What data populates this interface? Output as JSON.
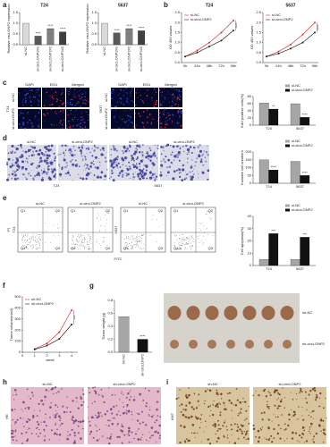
{
  "chart_data": [
    {
      "type": "bar",
      "title": "T24",
      "ylabel": "Relative circLONP2 expression",
      "categories": [
        "si-NC",
        "si-circLONP2#1",
        "si-circLONP2#2",
        "si-circLONP2#3"
      ],
      "values": [
        1.0,
        0.4,
        0.75,
        0.6
      ],
      "colors": [
        "#d9d9d9",
        "#595959",
        "#7f7f7f",
        "#404040"
      ],
      "annotations": [
        null,
        "****",
        "****",
        "****"
      ],
      "ylim": [
        0,
        1.5
      ],
      "yticks": [
        {
          "value": 0,
          "label": "0.0"
        },
        0.5,
        {
          "value": 1,
          "label": "1.0"
        },
        1.5
      ]
    },
    {
      "type": "bar",
      "title": "5637",
      "ylabel": "Relative circLONP2 expression",
      "categories": [
        "si-NC",
        "si-circLONP2#1",
        "si-circLONP2#2",
        "si-circLONP2#3"
      ],
      "values": [
        1.0,
        0.55,
        0.75,
        0.65
      ],
      "colors": [
        "#d9d9d9",
        "#595959",
        "#7f7f7f",
        "#404040"
      ],
      "annotations": [
        null,
        "****",
        "****",
        "****"
      ],
      "ylim": [
        0,
        1.5
      ],
      "yticks": [
        {
          "value": 0,
          "label": "0.0"
        },
        0.5,
        {
          "value": 1,
          "label": "1.0"
        },
        1.5
      ]
    },
    {
      "type": "line",
      "title": "T24",
      "ylabel": "OD 450 values",
      "categories": [
        "0h",
        "24h",
        "48h",
        "72h",
        "96h"
      ],
      "series": [
        {
          "name": "si-NC",
          "color": "#e03030",
          "values": [
            0.3,
            0.6,
            1.0,
            1.5,
            2.1
          ]
        },
        {
          "name": "si-circLONP2",
          "color": "#222222",
          "values": [
            0.3,
            0.5,
            0.8,
            1.1,
            1.6
          ]
        }
      ],
      "annotation": "****",
      "ylim": [
        0,
        2.5
      ],
      "yticks": [
        {
          "value": 0,
          "label": "0.0"
        },
        0.5,
        {
          "value": 1,
          "label": "1.0"
        },
        1.5,
        {
          "value": 2,
          "label": "2.0"
        },
        2.5
      ]
    },
    {
      "type": "line",
      "title": "5637",
      "ylabel": "OD 450 values",
      "categories": [
        "0h",
        "24h",
        "48h",
        "72h",
        "96h"
      ],
      "series": [
        {
          "name": "si-NC",
          "color": "#e03030",
          "values": [
            0.3,
            0.55,
            0.9,
            1.4,
            2.0
          ]
        },
        {
          "name": "si-circLONP2",
          "color": "#222222",
          "values": [
            0.3,
            0.45,
            0.7,
            1.0,
            1.5
          ]
        }
      ],
      "annotation": "****",
      "ylim": [
        0,
        2.5
      ],
      "yticks": [
        {
          "value": 0,
          "label": "0.0"
        },
        0.5,
        {
          "value": 1,
          "label": "1.0"
        },
        1.5,
        {
          "value": 2,
          "label": "2.0"
        },
        2.5
      ]
    },
    {
      "type": "bar",
      "ylabel": "EdU positive cells(%)",
      "categories": [
        "T24",
        "5637"
      ],
      "series": [
        {
          "name": "si-NC",
          "color": "#a6a6a6",
          "values": [
            62,
            60
          ]
        },
        {
          "name": "si-circLONP2",
          "color": "#111111",
          "values": [
            45,
            22
          ]
        }
      ],
      "annotations": [
        "**",
        "****"
      ],
      "ylim": [
        0,
        80
      ],
      "yticks": [
        0,
        20,
        40,
        60,
        80
      ]
    },
    {
      "type": "bar",
      "ylabel": "Invasive cell numbers",
      "categories": [
        "T24",
        "5637"
      ],
      "series": [
        {
          "name": "si-NC",
          "color": "#a6a6a6",
          "values": [
            150,
            140
          ]
        },
        {
          "name": "si-circLONP2",
          "color": "#111111",
          "values": [
            85,
            50
          ]
        }
      ],
      "annotations": [
        "****",
        "****"
      ],
      "ylim": [
        0,
        200
      ],
      "yticks": [
        0,
        50,
        100,
        150,
        200
      ]
    },
    {
      "type": "bar",
      "ylabel": "Cell apoptosis(%)",
      "categories": [
        "T24",
        "5637"
      ],
      "series": [
        {
          "name": "si-NC",
          "color": "#a6a6a6",
          "values": [
            5,
            5
          ]
        },
        {
          "name": "si-circLONP2",
          "color": "#111111",
          "values": [
            26,
            23
          ]
        }
      ],
      "annotations": [
        "***",
        "***"
      ],
      "ylim": [
        0,
        40
      ],
      "yticks": [
        0,
        10,
        20,
        30,
        40
      ]
    },
    {
      "type": "line",
      "ylabel": "Tumor volume(mm3)",
      "xlabel": "week",
      "x": [
        1,
        2,
        3,
        4
      ],
      "xlim": [
        0,
        4.5
      ],
      "xticks": [
        0,
        1,
        2,
        3,
        4
      ],
      "series": [
        {
          "name": "sh-NC",
          "color": "#e03030",
          "values": [
            30,
            80,
            180,
            380
          ]
        },
        {
          "name": "sh-circLONP2",
          "color": "#222222",
          "values": [
            25,
            60,
            120,
            250
          ]
        }
      ],
      "annotation": "***",
      "ylim": [
        0,
        500
      ],
      "yticks": [
        0,
        100,
        200,
        300,
        400,
        500
      ]
    },
    {
      "type": "bar",
      "ylabel": "Tumor weight (g)",
      "categories": [
        "sh-NC",
        "sh-circLONP2"
      ],
      "values": [
        0.55,
        0.2
      ],
      "colors": [
        "#a6a6a6",
        "#111111"
      ],
      "annotations": [
        null,
        "****"
      ],
      "ylim": [
        0,
        0.8
      ],
      "yticks": [
        {
          "value": 0,
          "label": "0.0"
        },
        0.2,
        0.4,
        0.6,
        0.8
      ]
    }
  ],
  "panel_letters": [
    "a",
    "b",
    "c",
    "d",
    "e",
    "f",
    "g",
    "h",
    "i"
  ],
  "panel_c": {
    "columns": [
      "DAPI",
      "EDU",
      "Merged"
    ],
    "rows": [
      "si-NC",
      "si-circLONP2"
    ],
    "lines": [
      "T24",
      "5637"
    ]
  },
  "panel_d": {
    "columns": [
      "si-NC",
      "si-circLONP2",
      "si-NC",
      "si-circLONP2"
    ],
    "lines": [
      "T24",
      "5637"
    ]
  },
  "panel_e": {
    "columns": [
      "si-NC",
      "si-circLONP2",
      "si-NC",
      "si-circLONP2"
    ],
    "lines": [
      "T24",
      "5637"
    ],
    "y_axis": "PI",
    "x_axis": "FITC",
    "quadrants": [
      "Q1",
      "Q2",
      "Q3",
      "Q4"
    ]
  },
  "panel_g_photo": {
    "rows": [
      "sh-NC",
      "sh-circLONP2"
    ]
  },
  "panel_h": {
    "columns": [
      "sh-NC",
      "sh-circLONP2"
    ],
    "stain": "HE"
  },
  "panel_i": {
    "columns": [
      "sh-NC",
      "sh-circLONP2"
    ],
    "stain": "Ki67"
  }
}
